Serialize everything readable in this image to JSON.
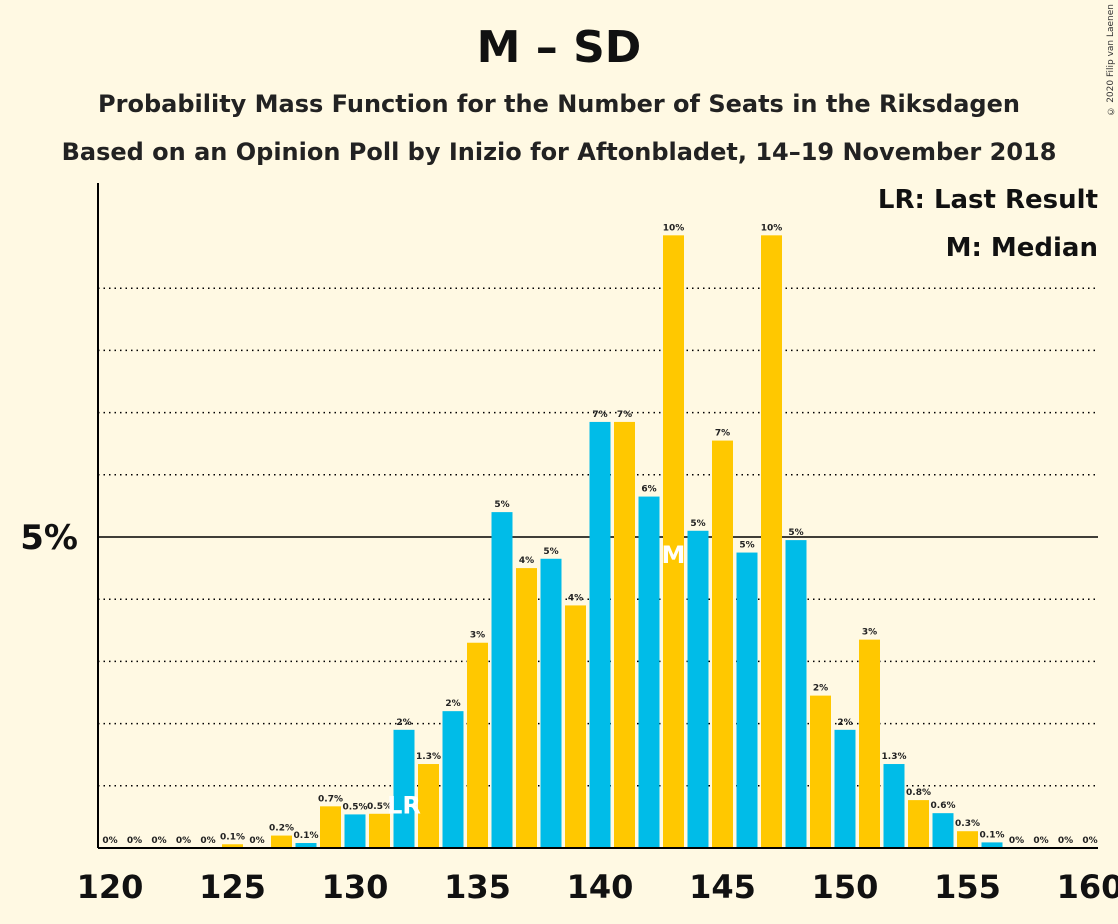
{
  "title": "M – SD",
  "subtitle_1": "Probability Mass Function for the Number of Seats in the Riksdagen",
  "subtitle_2": "Based on an Opinion Poll by Inizio for Aftonbladet, 14–19 November 2018",
  "copyright": "© 2020 Filip van Laenen",
  "legend": {
    "last_result": "LR: Last Result",
    "median": "M: Median"
  },
  "colors": {
    "background": "#FFF9E3",
    "blue": "#00BCE8",
    "yellow": "#FFC800",
    "gridline": "#000000"
  },
  "chart_data": {
    "type": "bar",
    "xlim": [
      120,
      160
    ],
    "ylim": [
      0,
      10.5
    ],
    "x_tick_labels": [
      "120",
      "125",
      "130",
      "135",
      "140",
      "145",
      "150",
      "155",
      "160"
    ],
    "y_tick_labels": [
      {
        "value": 5,
        "label": "5%"
      }
    ],
    "grid": "dotted horizontal every 1%",
    "markers": [
      {
        "seat": 132,
        "label": "LR"
      },
      {
        "seat": 143,
        "label": "M"
      }
    ],
    "bars": [
      {
        "seat": 120,
        "value": 0.0,
        "label": "0%",
        "color": "blue"
      },
      {
        "seat": 121,
        "value": 0.0,
        "label": "0%",
        "color": "yellow"
      },
      {
        "seat": 122,
        "value": 0.0,
        "label": "0%",
        "color": "blue"
      },
      {
        "seat": 123,
        "value": 0.0,
        "label": "0%",
        "color": "yellow"
      },
      {
        "seat": 124,
        "value": 0.0,
        "label": "0%",
        "color": "blue"
      },
      {
        "seat": 125,
        "value": 0.06,
        "label": "0.1%",
        "color": "yellow"
      },
      {
        "seat": 126,
        "value": 0.0,
        "label": "0%",
        "color": "blue"
      },
      {
        "seat": 127,
        "value": 0.2,
        "label": "0.2%",
        "color": "yellow"
      },
      {
        "seat": 128,
        "value": 0.08,
        "label": "0.1%",
        "color": "blue"
      },
      {
        "seat": 129,
        "value": 0.67,
        "label": "0.7%",
        "color": "yellow"
      },
      {
        "seat": 130,
        "value": 0.54,
        "label": "0.5%",
        "color": "blue"
      },
      {
        "seat": 131,
        "value": 0.55,
        "label": "0.5%",
        "color": "yellow"
      },
      {
        "seat": 132,
        "value": 1.9,
        "label": "2%",
        "color": "blue"
      },
      {
        "seat": 133,
        "value": 1.35,
        "label": "1.3%",
        "color": "yellow"
      },
      {
        "seat": 134,
        "value": 2.2,
        "label": "2%",
        "color": "blue"
      },
      {
        "seat": 135,
        "value": 3.3,
        "label": "3%",
        "color": "yellow"
      },
      {
        "seat": 136,
        "value": 5.4,
        "label": "5%",
        "color": "blue"
      },
      {
        "seat": 137,
        "value": 4.5,
        "label": "4%",
        "color": "yellow"
      },
      {
        "seat": 138,
        "value": 4.65,
        "label": "5%",
        "color": "blue"
      },
      {
        "seat": 139,
        "value": 3.9,
        "label": "4%",
        "color": "yellow"
      },
      {
        "seat": 140,
        "value": 6.85,
        "label": "7%",
        "color": "blue"
      },
      {
        "seat": 141,
        "value": 6.85,
        "label": "7%",
        "color": "yellow"
      },
      {
        "seat": 142,
        "value": 5.65,
        "label": "6%",
        "color": "blue"
      },
      {
        "seat": 143,
        "value": 9.85,
        "label": "10%",
        "color": "yellow"
      },
      {
        "seat": 144,
        "value": 5.1,
        "label": "5%",
        "color": "blue"
      },
      {
        "seat": 145,
        "value": 6.55,
        "label": "7%",
        "color": "yellow"
      },
      {
        "seat": 146,
        "value": 4.75,
        "label": "5%",
        "color": "blue"
      },
      {
        "seat": 147,
        "value": 9.85,
        "label": "10%",
        "color": "yellow"
      },
      {
        "seat": 148,
        "value": 4.95,
        "label": "5%",
        "color": "blue"
      },
      {
        "seat": 149,
        "value": 2.45,
        "label": "2%",
        "color": "yellow"
      },
      {
        "seat": 150,
        "value": 1.9,
        "label": "2%",
        "color": "blue"
      },
      {
        "seat": 151,
        "value": 3.35,
        "label": "3%",
        "color": "yellow"
      },
      {
        "seat": 152,
        "value": 1.35,
        "label": "1.3%",
        "color": "blue"
      },
      {
        "seat": 153,
        "value": 0.77,
        "label": "0.8%",
        "color": "yellow"
      },
      {
        "seat": 154,
        "value": 0.56,
        "label": "0.6%",
        "color": "blue"
      },
      {
        "seat": 155,
        "value": 0.27,
        "label": "0.3%",
        "color": "yellow"
      },
      {
        "seat": 156,
        "value": 0.09,
        "label": "0.1%",
        "color": "blue"
      },
      {
        "seat": 157,
        "value": 0.0,
        "label": "0%",
        "color": "yellow"
      },
      {
        "seat": 158,
        "value": 0.0,
        "label": "0%",
        "color": "blue"
      },
      {
        "seat": 159,
        "value": 0.0,
        "label": "0%",
        "color": "yellow"
      },
      {
        "seat": 160,
        "value": 0.0,
        "label": "0%",
        "color": "blue"
      }
    ]
  }
}
